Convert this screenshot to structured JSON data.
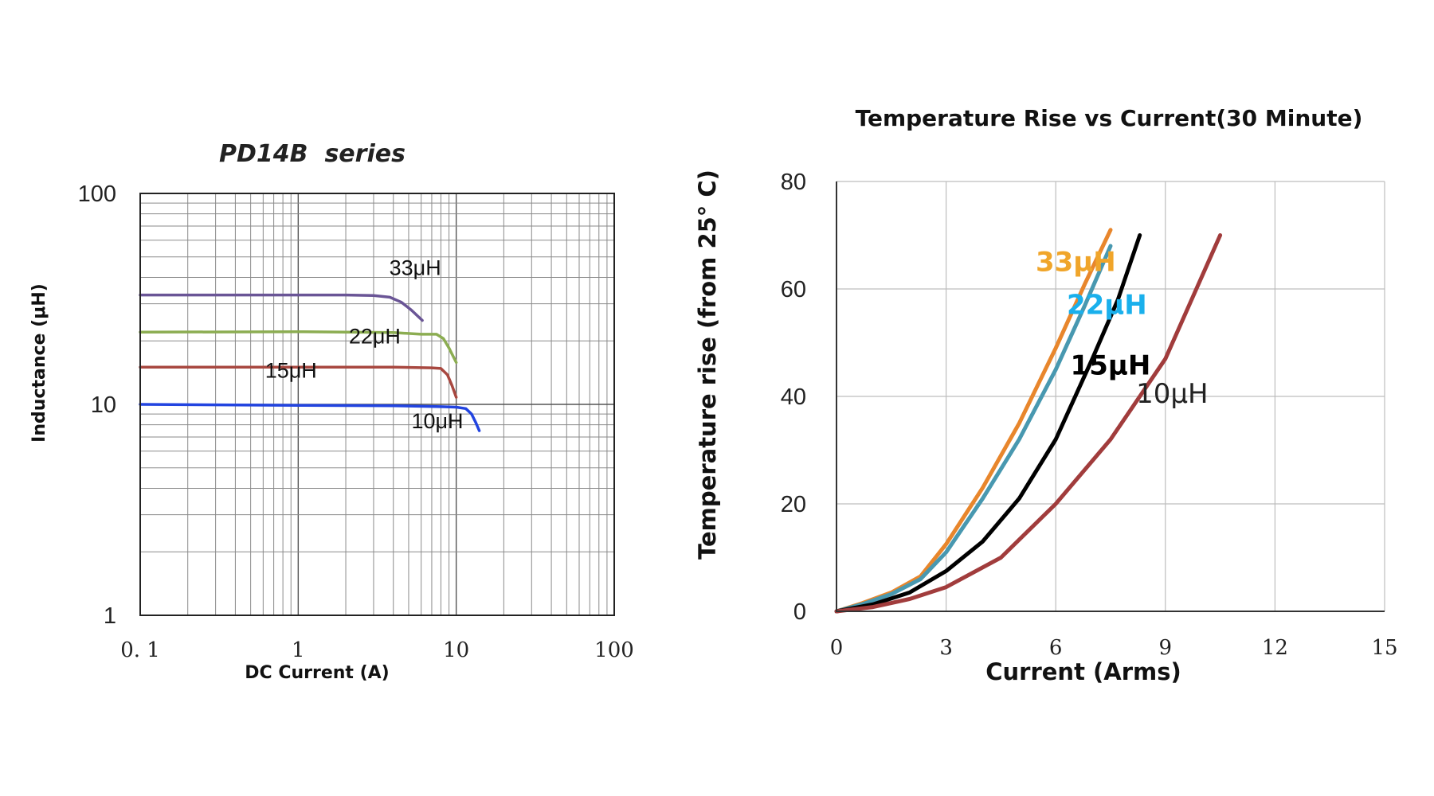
{
  "chart_data": [
    {
      "type": "line",
      "title": "PD14B  series",
      "xlabel": "DC Current (A)",
      "ylabel": "Inductance (μH)",
      "xscale": "log",
      "yscale": "log",
      "xlim": [
        0.1,
        100
      ],
      "ylim": [
        1,
        100
      ],
      "xticks": [
        "0. 1",
        "1",
        "10",
        "100"
      ],
      "yticks": [
        "1",
        "10",
        "100"
      ],
      "grid": true,
      "series": [
        {
          "name": "33μH",
          "color": "#6a5596",
          "x": [
            0.1,
            1,
            2,
            3,
            3.8,
            4.5,
            5.2,
            6.1
          ],
          "y": [
            33,
            33,
            33,
            32.8,
            32.2,
            30.5,
            28,
            25
          ]
        },
        {
          "name": "22μH",
          "color": "#8cad52",
          "x": [
            0.1,
            1,
            2,
            4,
            6,
            7.5,
            8.3,
            9,
            10
          ],
          "y": [
            22,
            22.1,
            22,
            21.9,
            21.5,
            21.5,
            20.5,
            18.5,
            15.8
          ]
        },
        {
          "name": "15μH",
          "color": "#a84840",
          "x": [
            0.1,
            1,
            4,
            7,
            8,
            8.8,
            9.4,
            10
          ],
          "y": [
            15,
            15,
            15,
            14.9,
            14.8,
            13.8,
            12.3,
            10.8
          ]
        },
        {
          "name": "10μH",
          "color": "#2244e0",
          "x": [
            0.1,
            1,
            4,
            8,
            10,
            11.5,
            12.5,
            13.3,
            14
          ],
          "y": [
            10,
            9.9,
            9.85,
            9.75,
            9.7,
            9.55,
            9,
            8.2,
            7.5
          ]
        }
      ],
      "annotations": [
        {
          "text": "33μH",
          "x": 5.5,
          "y": 41
        },
        {
          "text": "22μH",
          "x": 3.05,
          "y": 19.4
        },
        {
          "text": "15μH",
          "x": 0.9,
          "y": 13.4
        },
        {
          "text": "10μH",
          "x": 7.6,
          "y": 7.7
        }
      ]
    },
    {
      "type": "line",
      "title": "Temperature Rise vs Current(30 Minute)",
      "xlabel": "Current (Arms)",
      "ylabel": "Temperature rise (from 25° C)",
      "xlim": [
        0,
        15
      ],
      "ylim": [
        0,
        80
      ],
      "xticks": [
        0,
        3,
        6,
        9,
        12,
        15
      ],
      "yticks": [
        0,
        20,
        40,
        60,
        80
      ],
      "grid": true,
      "series": [
        {
          "name": "33μH",
          "color": "#e8862c",
          "x": [
            0,
            0.7,
            1.5,
            2.3,
            3,
            4,
            5,
            6,
            6.8,
            7.5
          ],
          "y": [
            0,
            1.5,
            3.5,
            6.5,
            12.5,
            23,
            35,
            49,
            61,
            71
          ]
        },
        {
          "name": "22μH",
          "color": "#4898b0",
          "x": [
            0,
            0.7,
            1.5,
            2.3,
            3,
            4,
            5,
            6,
            6.8,
            7.5
          ],
          "y": [
            0,
            1.3,
            3.2,
            6,
            11,
            21,
            32,
            45,
            57,
            68
          ]
        },
        {
          "name": "15μH",
          "color": "#000000",
          "x": [
            0,
            1,
            2,
            3,
            4,
            5,
            6,
            7,
            7.7,
            8.3
          ],
          "y": [
            0,
            1.3,
            3.5,
            7.5,
            13,
            21,
            32,
            47,
            58,
            70
          ]
        },
        {
          "name": "10μH",
          "color": "#a13c3c",
          "x": [
            0,
            1,
            2,
            3,
            4.5,
            6,
            7.5,
            9,
            10.5
          ],
          "y": [
            0,
            0.8,
            2.3,
            4.5,
            10,
            20,
            32,
            47,
            70
          ]
        }
      ],
      "annotations": [
        {
          "text": "33μH",
          "color": "#f0a52a",
          "weight": "bold",
          "x": 5.45,
          "y": 63.3
        },
        {
          "text": "22μH",
          "color": "#1ab0ec",
          "weight": "bold",
          "x": 6.3,
          "y": 55.3
        },
        {
          "text": "15μH",
          "color": "#000000",
          "weight": "bold",
          "x": 6.4,
          "y": 44.1
        },
        {
          "text": "10μH",
          "color": "#222222",
          "weight": "normal",
          "x": 8.2,
          "y": 38.8
        }
      ]
    }
  ]
}
